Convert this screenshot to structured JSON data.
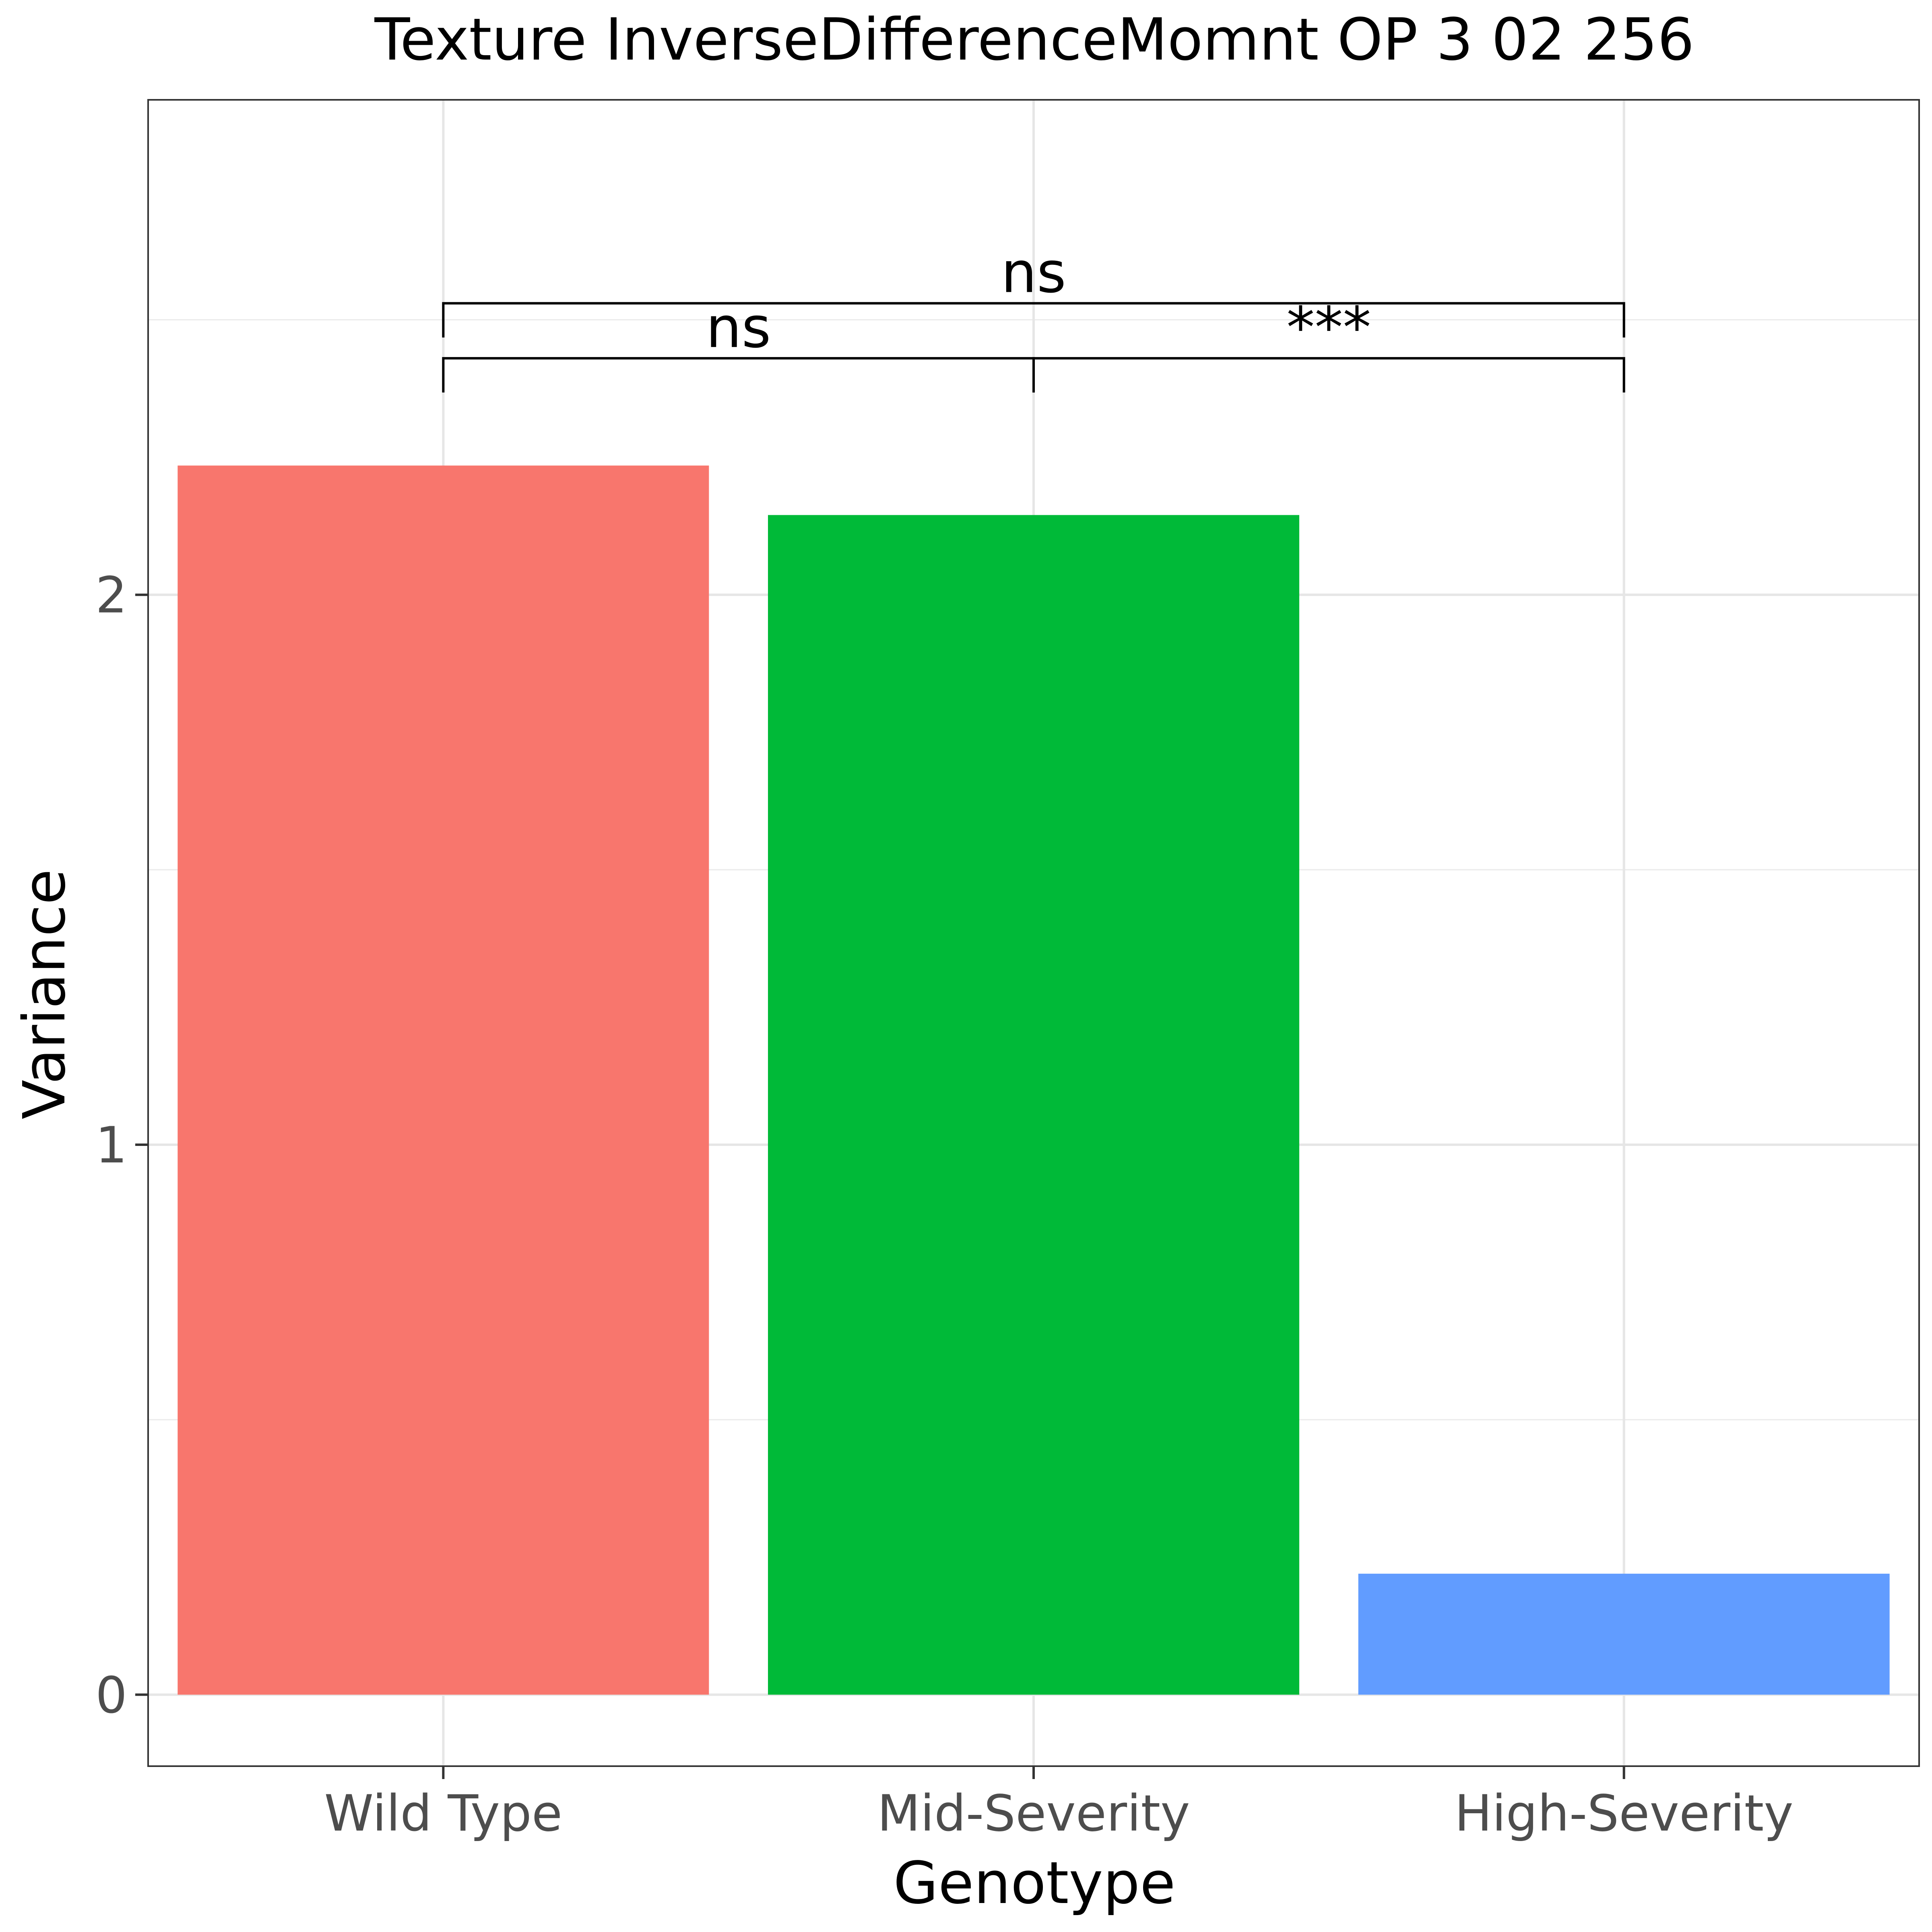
{
  "chart_data": {
    "type": "bar",
    "title": "Texture InverseDifferenceMomnt OP 3 02 256",
    "xlabel": "Genotype",
    "ylabel": "Variance",
    "categories": [
      "Wild Type",
      "Mid-Severity",
      "High-Severity"
    ],
    "values": [
      2.235,
      2.145,
      0.22
    ],
    "colors": [
      "#F8766D",
      "#00BA38",
      "#619CFF"
    ],
    "ylim": [
      -0.13,
      2.9
    ],
    "yticks": [
      0,
      1,
      2
    ],
    "ytick_labels": [
      "0",
      "1",
      "2"
    ],
    "grid": true,
    "legend": "none",
    "comparisons": [
      {
        "from": "Wild Type",
        "to": "Mid-Severity",
        "label": "ns",
        "y": 2.43
      },
      {
        "from": "Mid-Severity",
        "to": "High-Severity",
        "label": "***",
        "y": 2.43
      },
      {
        "from": "Wild Type",
        "to": "High-Severity",
        "label": "ns",
        "y": 2.53
      }
    ]
  }
}
